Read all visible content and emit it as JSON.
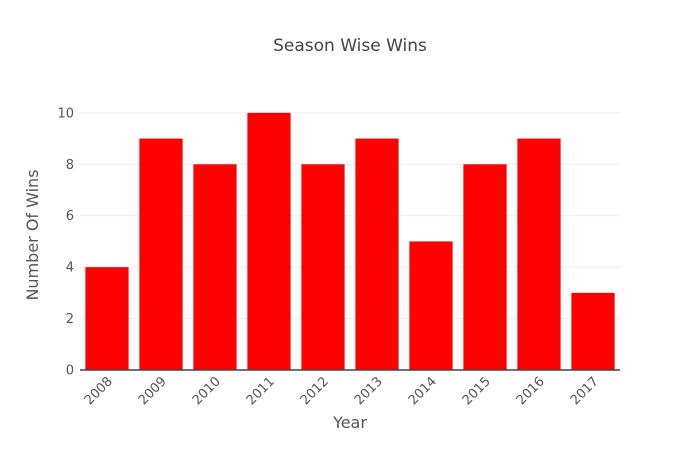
{
  "chart_data": {
    "type": "bar",
    "title": "Season Wise Wins",
    "xlabel": "Year",
    "ylabel": "Number Of Wins",
    "categories": [
      "2008",
      "2009",
      "2010",
      "2011",
      "2012",
      "2013",
      "2014",
      "2015",
      "2016",
      "2017"
    ],
    "series": [
      {
        "values": [
          4,
          9,
          8,
          10,
          8,
          9,
          5,
          8,
          9,
          3
        ]
      }
    ],
    "ylim": [
      0,
      10.5
    ],
    "yticks": [
      0,
      2,
      4,
      6,
      8,
      10
    ],
    "grid": true,
    "bar_color": "#ff0000"
  }
}
